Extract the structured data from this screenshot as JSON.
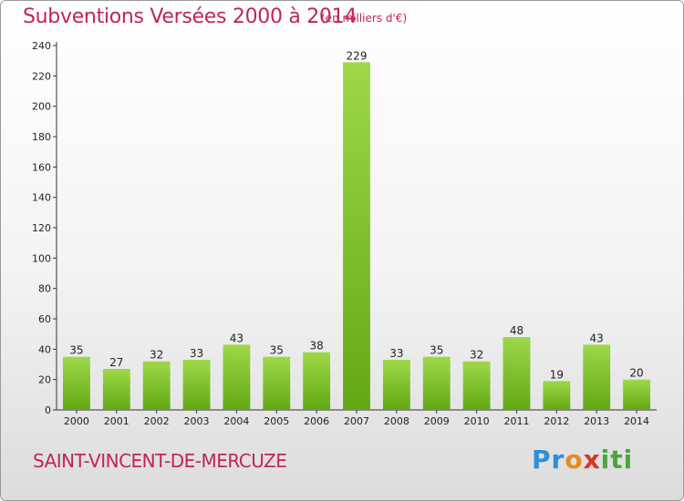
{
  "header": {
    "title": "Subventions Versées 2000 à 2014",
    "unit": "(en milliers d'€)"
  },
  "footer": {
    "town": "SAINT-VINCENT-DE-MERCUZE",
    "logo": "Proxiti"
  },
  "colors": {
    "title": "#c0245c",
    "bar_light": "#9ed84a",
    "bar_dark": "#62a814"
  },
  "chart_data": {
    "type": "bar",
    "title": "Subventions Versées 2000 à 2014",
    "subtitle": "(en milliers d'€)",
    "categories": [
      "2000",
      "2001",
      "2002",
      "2003",
      "2004",
      "2005",
      "2006",
      "2007",
      "2008",
      "2009",
      "2010",
      "2011",
      "2012",
      "2013",
      "2014"
    ],
    "values": [
      35,
      27,
      32,
      33,
      43,
      35,
      38,
      229,
      33,
      35,
      32,
      48,
      19,
      43,
      20
    ],
    "ylim": [
      0,
      240
    ],
    "yticks": [
      0,
      20,
      40,
      60,
      80,
      100,
      120,
      140,
      160,
      180,
      200,
      220,
      240
    ],
    "grid": false,
    "data_labels": true
  }
}
